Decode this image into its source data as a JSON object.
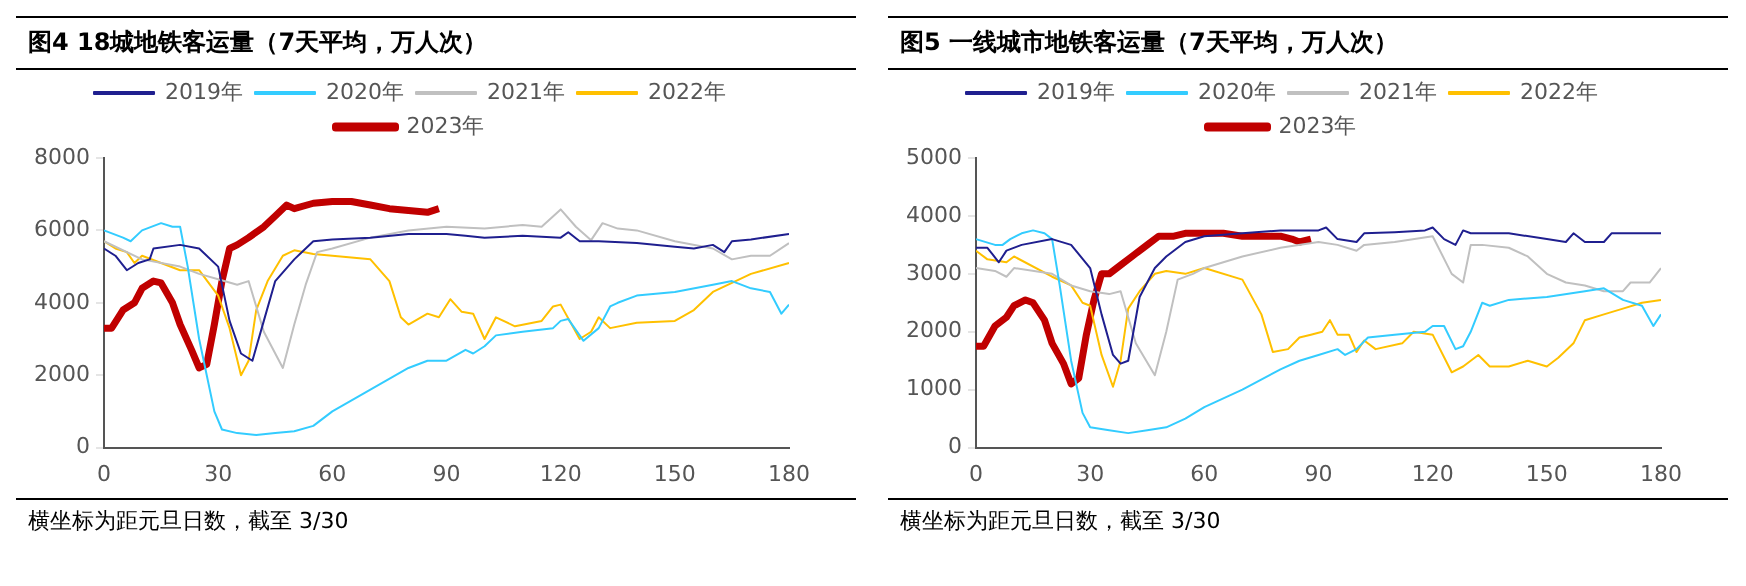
{
  "chart_data": [
    {
      "type": "line",
      "title": "图4 18城地铁客运量（7天平均，万人次）",
      "annotations": [
        "横坐标为距元旦日数，截至 3/30"
      ],
      "xlim": [
        0,
        180
      ],
      "xticks": [
        0,
        30,
        60,
        90,
        120,
        150,
        180
      ],
      "ylim": [
        0,
        8000
      ],
      "yticks": [
        0,
        2000,
        4000,
        6000,
        8000
      ],
      "grid": false,
      "legend": "top",
      "marker": "none",
      "series": [
        {
          "name": "2019年",
          "color": "#1f1f8f",
          "x": [
            0,
            3,
            6,
            9,
            12,
            13,
            20,
            25,
            30,
            33,
            36,
            39,
            42,
            45,
            50,
            55,
            60,
            70,
            80,
            90,
            95,
            100,
            110,
            120,
            122,
            125,
            130,
            140,
            150,
            155,
            160,
            163,
            165,
            170,
            180
          ],
          "values": [
            5500,
            5300,
            4900,
            5100,
            5200,
            5500,
            5600,
            5500,
            5000,
            3500,
            2600,
            2400,
            3500,
            4600,
            5200,
            5700,
            5750,
            5800,
            5900,
            5900,
            5850,
            5800,
            5850,
            5800,
            5950,
            5700,
            5700,
            5650,
            5550,
            5500,
            5600,
            5400,
            5700,
            5750,
            5900
          ]
        },
        {
          "name": "2020年",
          "color": "#33ccff",
          "x": [
            0,
            5,
            7,
            10,
            15,
            18,
            20,
            22,
            25,
            27,
            29,
            31,
            35,
            40,
            45,
            50,
            55,
            60,
            70,
            80,
            85,
            90,
            95,
            97,
            100,
            103,
            110,
            118,
            120,
            122,
            126,
            130,
            133,
            135,
            140,
            150,
            160,
            165,
            170,
            175,
            178,
            180
          ],
          "values": [
            6000,
            5800,
            5700,
            6000,
            6200,
            6100,
            6100,
            5000,
            3000,
            2000,
            1000,
            500,
            400,
            350,
            400,
            450,
            600,
            1000,
            1600,
            2200,
            2400,
            2400,
            2700,
            2600,
            2800,
            3100,
            3200,
            3300,
            3500,
            3550,
            2950,
            3300,
            3900,
            4000,
            4200,
            4300,
            4500,
            4600,
            4400,
            4300,
            3700,
            3950
          ]
        },
        {
          "name": "2021年",
          "color": "#c0c0c0",
          "x": [
            0,
            10,
            20,
            25,
            30,
            35,
            38,
            42,
            47,
            50,
            53,
            56,
            60,
            70,
            80,
            90,
            100,
            110,
            115,
            120,
            124,
            128,
            131,
            135,
            140,
            150,
            160,
            165,
            170,
            175,
            180
          ],
          "values": [
            5700,
            5200,
            5000,
            4800,
            4650,
            4500,
            4600,
            3200,
            2200,
            3400,
            4500,
            5400,
            5500,
            5800,
            6000,
            6100,
            6050,
            6150,
            6100,
            6580,
            6100,
            5730,
            6200,
            6050,
            6000,
            5700,
            5500,
            5200,
            5300,
            5300,
            5650
          ]
        },
        {
          "name": "2022年",
          "color": "#ffc000",
          "x": [
            0,
            3,
            6,
            8,
            10,
            20,
            25,
            30,
            33,
            36,
            38,
            40,
            43,
            47,
            50,
            55,
            60,
            70,
            75,
            78,
            80,
            85,
            88,
            91,
            94,
            97,
            100,
            103,
            108,
            115,
            118,
            120,
            125,
            128,
            130,
            133,
            140,
            150,
            155,
            160,
            170,
            180
          ],
          "values": [
            5700,
            5500,
            5400,
            5100,
            5300,
            4900,
            4900,
            4200,
            3300,
            2000,
            2400,
            3800,
            4600,
            5300,
            5450,
            5350,
            5300,
            5200,
            4600,
            3600,
            3400,
            3700,
            3600,
            4100,
            3750,
            3700,
            3000,
            3600,
            3350,
            3500,
            3900,
            3950,
            3000,
            3200,
            3600,
            3300,
            3450,
            3500,
            3800,
            4300,
            4800,
            5100
          ]
        },
        {
          "name": "2023年",
          "color": "#c00000",
          "x": [
            0,
            2,
            5,
            8,
            10,
            13,
            15,
            18,
            20,
            23,
            25,
            27,
            29,
            31,
            33,
            35,
            38,
            42,
            45,
            48,
            50,
            55,
            60,
            65,
            70,
            75,
            80,
            85,
            88
          ],
          "values": [
            3300,
            3300,
            3800,
            4000,
            4400,
            4600,
            4550,
            4000,
            3400,
            2700,
            2200,
            2300,
            3400,
            4600,
            5500,
            5600,
            5800,
            6100,
            6400,
            6700,
            6600,
            6750,
            6800,
            6800,
            6700,
            6600,
            6550,
            6500,
            6600
          ]
        }
      ]
    },
    {
      "type": "line",
      "title": "图5 一线城市地铁客运量（7天平均，万人次）",
      "annotations": [
        "横坐标为距元旦日数，截至 3/30"
      ],
      "xlim": [
        0,
        180
      ],
      "xticks": [
        0,
        30,
        60,
        90,
        120,
        150,
        180
      ],
      "ylim": [
        0,
        5000
      ],
      "yticks": [
        0,
        1000,
        2000,
        3000,
        4000,
        5000
      ],
      "grid": false,
      "legend": "top",
      "marker": "none",
      "series": [
        {
          "name": "2019年",
          "color": "#1f1f8f",
          "x": [
            0,
            3,
            6,
            8,
            12,
            20,
            25,
            30,
            33,
            36,
            38,
            40,
            43,
            47,
            50,
            55,
            60,
            70,
            80,
            90,
            92,
            95,
            100,
            102,
            110,
            118,
            120,
            123,
            126,
            128,
            130,
            140,
            150,
            155,
            157,
            160,
            165,
            167,
            170,
            180
          ],
          "values": [
            3450,
            3450,
            3200,
            3400,
            3500,
            3600,
            3500,
            3100,
            2300,
            1600,
            1450,
            1500,
            2600,
            3100,
            3300,
            3550,
            3650,
            3700,
            3750,
            3750,
            3800,
            3600,
            3550,
            3700,
            3720,
            3750,
            3800,
            3600,
            3500,
            3750,
            3700,
            3700,
            3600,
            3550,
            3700,
            3550,
            3550,
            3700,
            3700,
            3700
          ]
        },
        {
          "name": "2020年",
          "color": "#33ccff",
          "x": [
            0,
            5,
            7,
            9,
            12,
            15,
            18,
            20,
            22,
            25,
            28,
            30,
            35,
            40,
            45,
            50,
            55,
            60,
            70,
            80,
            85,
            90,
            95,
            97,
            100,
            103,
            110,
            118,
            120,
            123,
            126,
            128,
            130,
            133,
            135,
            140,
            150,
            160,
            165,
            170,
            175,
            178,
            180
          ],
          "values": [
            3600,
            3500,
            3500,
            3600,
            3700,
            3750,
            3700,
            3600,
            2800,
            1500,
            600,
            350,
            300,
            250,
            300,
            350,
            500,
            700,
            1000,
            1350,
            1500,
            1600,
            1700,
            1600,
            1700,
            1900,
            1950,
            2000,
            2100,
            2100,
            1700,
            1750,
            2000,
            2500,
            2450,
            2550,
            2600,
            2700,
            2750,
            2550,
            2450,
            2100,
            2300
          ]
        },
        {
          "name": "2021年",
          "color": "#c0c0c0",
          "x": [
            0,
            5,
            8,
            10,
            20,
            25,
            30,
            35,
            38,
            42,
            47,
            50,
            53,
            57,
            60,
            70,
            80,
            90,
            95,
            100,
            102,
            110,
            120,
            125,
            128,
            130,
            133,
            140,
            145,
            150,
            155,
            160,
            165,
            170,
            172,
            177,
            180
          ],
          "values": [
            3100,
            3050,
            2950,
            3100,
            3000,
            2800,
            2700,
            2650,
            2700,
            1800,
            1250,
            2000,
            2900,
            3000,
            3100,
            3300,
            3450,
            3550,
            3500,
            3400,
            3500,
            3550,
            3650,
            3000,
            2850,
            3500,
            3500,
            3450,
            3300,
            3000,
            2850,
            2800,
            2700,
            2700,
            2850,
            2850,
            3100
          ]
        },
        {
          "name": "2022年",
          "color": "#ffc000",
          "x": [
            0,
            3,
            8,
            10,
            20,
            25,
            28,
            30,
            33,
            36,
            38,
            40,
            43,
            47,
            50,
            55,
            60,
            70,
            75,
            78,
            82,
            85,
            88,
            91,
            93,
            95,
            98,
            100,
            102,
            105,
            112,
            115,
            120,
            125,
            128,
            132,
            135,
            140,
            145,
            150,
            153,
            157,
            160,
            165,
            170,
            175,
            180
          ],
          "values": [
            3400,
            3250,
            3200,
            3300,
            2950,
            2800,
            2500,
            2450,
            1600,
            1050,
            1500,
            2400,
            2700,
            3000,
            3050,
            3000,
            3100,
            2900,
            2300,
            1650,
            1700,
            1900,
            1950,
            2000,
            2200,
            1950,
            1950,
            1650,
            1850,
            1700,
            1800,
            2000,
            1950,
            1300,
            1400,
            1600,
            1400,
            1400,
            1500,
            1400,
            1550,
            1800,
            2200,
            2300,
            2400,
            2500,
            2550
          ]
        },
        {
          "name": "2023年",
          "color": "#c00000",
          "x": [
            0,
            2,
            5,
            8,
            10,
            13,
            15,
            18,
            20,
            23,
            25,
            27,
            29,
            31,
            33,
            35,
            38,
            42,
            45,
            48,
            52,
            55,
            60,
            65,
            70,
            75,
            80,
            83,
            85,
            88
          ],
          "values": [
            1750,
            1750,
            2100,
            2250,
            2450,
            2550,
            2500,
            2200,
            1800,
            1450,
            1100,
            1200,
            1950,
            2550,
            3000,
            3000,
            3150,
            3350,
            3500,
            3650,
            3650,
            3700,
            3700,
            3700,
            3650,
            3650,
            3650,
            3600,
            3550,
            3600
          ]
        }
      ]
    }
  ]
}
